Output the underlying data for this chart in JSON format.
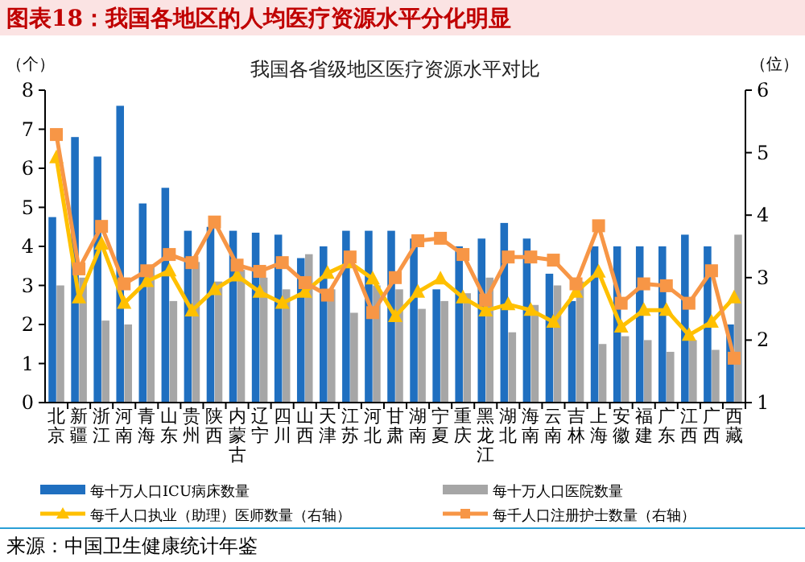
{
  "chart_data": {
    "type": "bar",
    "title": "图表18：我国各地区的人均医疗资源水平分化明显",
    "subtitle": "我国各省级地区医疗资源水平对比",
    "ylabel": "（个）",
    "y2label": "（位）",
    "categories": [
      "北京",
      "新疆",
      "浙江",
      "河南",
      "青海",
      "山东",
      "贵州",
      "陕西",
      "内蒙古",
      "辽宁",
      "四川",
      "山西",
      "天津",
      "江苏",
      "河北",
      "甘肃",
      "湖南",
      "宁夏",
      "重庆",
      "黑龙江",
      "湖北",
      "海南",
      "云南",
      "吉林",
      "上海",
      "安徽",
      "福建",
      "广东",
      "江西",
      "广西",
      "西藏"
    ],
    "series": [
      {
        "name": "每十万人口ICU病床数量",
        "color": "#1f6fc0",
        "values": [
          4.75,
          6.8,
          6.3,
          7.6,
          5.1,
          5.5,
          4.4,
          4.5,
          4.4,
          4.35,
          4.3,
          3.7,
          4.0,
          4.4,
          4.4,
          4.4,
          4.2,
          2.9,
          4.0,
          4.2,
          4.6,
          4.2,
          3.3,
          2.6,
          4.0,
          4.0,
          4.0,
          4.0,
          4.3,
          4.0,
          2.0
        ]
      },
      {
        "name": "每十万人口医院数量",
        "color": "#a6a6a6",
        "values": [
          3.0,
          3.2,
          2.1,
          2.0,
          3.5,
          2.6,
          3.6,
          3.1,
          3.4,
          3.2,
          2.9,
          3.8,
          2.9,
          2.3,
          3.0,
          2.9,
          2.4,
          2.6,
          2.8,
          3.2,
          1.8,
          2.5,
          3.0,
          3.1,
          1.5,
          1.7,
          1.6,
          1.3,
          1.6,
          1.35,
          4.3
        ]
      },
      {
        "name": "每千人口执业（助理）医师数量（右轴）",
        "type": "line",
        "axis": "y2",
        "marker": "triangle",
        "color": "#ffc000",
        "values": [
          4.92,
          2.68,
          3.54,
          2.59,
          2.94,
          3.11,
          2.47,
          2.81,
          3.03,
          2.77,
          2.59,
          2.77,
          3.07,
          3.24,
          2.98,
          2.38,
          2.77,
          2.98,
          2.68,
          2.47,
          2.57,
          2.48,
          2.29,
          2.77,
          3.09,
          2.21,
          2.48,
          2.48,
          2.08,
          2.29,
          2.68
        ]
      },
      {
        "name": "每千人口注册护士数量（右轴）",
        "type": "line",
        "axis": "y2",
        "marker": "square",
        "color": "#f79646",
        "values": [
          5.29,
          3.14,
          3.82,
          2.9,
          3.11,
          3.37,
          3.24,
          3.89,
          3.2,
          3.1,
          3.24,
          2.92,
          2.72,
          3.33,
          2.44,
          3.0,
          3.59,
          3.63,
          3.37,
          2.64,
          3.33,
          3.33,
          3.28,
          2.9,
          3.83,
          2.59,
          2.9,
          2.87,
          2.59,
          3.11,
          1.71
        ]
      }
    ],
    "ylim": [
      0,
      8
    ],
    "yticks": [
      0,
      1,
      2,
      3,
      4,
      5,
      6,
      7,
      8
    ],
    "y2lim": [
      1,
      6
    ],
    "y2ticks": [
      1,
      2,
      3,
      4,
      5,
      6
    ],
    "legend": "bottom",
    "grid": false,
    "annotations": [
      "来源：中国卫生健康统计年鉴"
    ]
  }
}
